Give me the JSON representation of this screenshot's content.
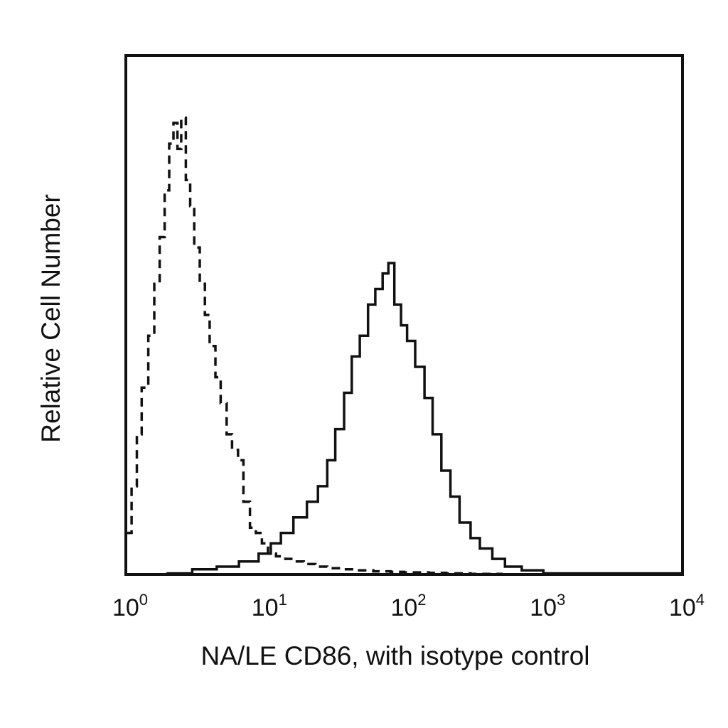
{
  "chart_data": {
    "type": "line",
    "title": "",
    "xlabel": "NA/LE CD86, with isotype control",
    "ylabel": "Relative Cell Number",
    "x_scale": "log",
    "xlim": [
      1,
      10000
    ],
    "ylim": [
      0,
      1
    ],
    "grid": false,
    "legend": "none",
    "x_ticks": [
      {
        "base": "10",
        "exp": "0",
        "value": 1
      },
      {
        "base": "10",
        "exp": "1",
        "value": 10
      },
      {
        "base": "10",
        "exp": "2",
        "value": 100
      },
      {
        "base": "10",
        "exp": "3",
        "value": 1000
      },
      {
        "base": "10",
        "exp": "4",
        "value": 10000
      }
    ],
    "series": [
      {
        "style": "dashed",
        "color": "#111111",
        "x": [
          1.0,
          1.1,
          1.2,
          1.3,
          1.45,
          1.6,
          1.75,
          1.9,
          2.05,
          2.2,
          2.35,
          2.5,
          2.7,
          2.9,
          3.1,
          3.4,
          3.7,
          4.0,
          4.4,
          4.8,
          5.3,
          5.8,
          6.4,
          7.0,
          7.8,
          8.6,
          9.5,
          10.5,
          12,
          14,
          16,
          19,
          23,
          28,
          35,
          45,
          60,
          80,
          100,
          150,
          200,
          300,
          500,
          1000,
          10000
        ],
        "y": [
          0.08,
          0.17,
          0.27,
          0.36,
          0.46,
          0.56,
          0.65,
          0.74,
          0.83,
          0.87,
          0.82,
          0.88,
          0.76,
          0.71,
          0.63,
          0.56,
          0.5,
          0.44,
          0.38,
          0.33,
          0.27,
          0.24,
          0.22,
          0.14,
          0.09,
          0.08,
          0.06,
          0.04,
          0.035,
          0.03,
          0.025,
          0.02,
          0.015,
          0.012,
          0.01,
          0.008,
          0.006,
          0.005,
          0.004,
          0.003,
          0.002,
          0.001,
          0.0,
          0.0,
          0.0
        ]
      },
      {
        "style": "solid",
        "color": "#111111",
        "x": [
          1.0,
          2.0,
          3.0,
          4.5,
          6.5,
          9.0,
          11,
          13,
          16,
          20,
          24,
          28,
          32,
          37,
          42,
          48,
          55,
          62,
          70,
          77,
          85,
          95,
          105,
          120,
          140,
          160,
          185,
          215,
          250,
          300,
          350,
          430,
          530,
          700,
          1000,
          10000
        ],
        "y": [
          0.0,
          0.002,
          0.01,
          0.015,
          0.025,
          0.04,
          0.06,
          0.08,
          0.11,
          0.14,
          0.17,
          0.22,
          0.28,
          0.35,
          0.42,
          0.46,
          0.52,
          0.55,
          0.58,
          0.6,
          0.52,
          0.48,
          0.45,
          0.4,
          0.34,
          0.27,
          0.2,
          0.15,
          0.1,
          0.07,
          0.05,
          0.03,
          0.015,
          0.008,
          0.002,
          0.0
        ]
      }
    ]
  }
}
